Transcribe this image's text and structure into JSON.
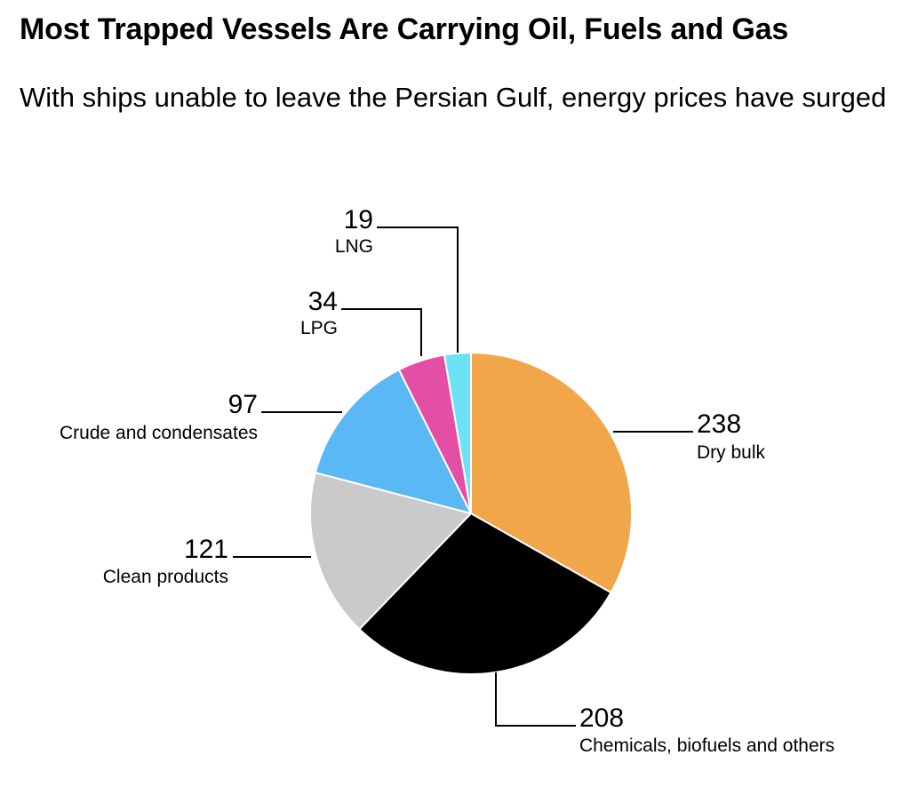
{
  "header": {
    "title": "Most Trapped Vessels Are Carrying Oil, Fuels and Gas",
    "subtitle": "With ships unable to leave the Persian Gulf, energy prices have surged"
  },
  "chart_data": {
    "type": "pie",
    "title": "Most Trapped Vessels Are Carrying Oil, Fuels and Gas",
    "subtitle": "With ships unable to leave the Persian Gulf, energy prices have surged",
    "slices": [
      {
        "label": "Dry bulk",
        "value": 238,
        "display": "238",
        "color": "#F2A64A"
      },
      {
        "label": "Chemicals, biofuels and others",
        "value": 208,
        "display": "208",
        "color": "#000000"
      },
      {
        "label": "Clean products",
        "value": 121,
        "display": "121",
        "color": "#CACACA"
      },
      {
        "label": "Crude and condensates",
        "value": 97,
        "display": "97",
        "color": "#5AB9F5"
      },
      {
        "label": "LPG",
        "value": 34,
        "display": "34",
        "color": "#E44FA5"
      },
      {
        "label": "LNG",
        "value": 19,
        "display": "19",
        "color": "#6CE3F5"
      }
    ],
    "start_angle": "12 o'clock",
    "direction": "clockwise"
  }
}
